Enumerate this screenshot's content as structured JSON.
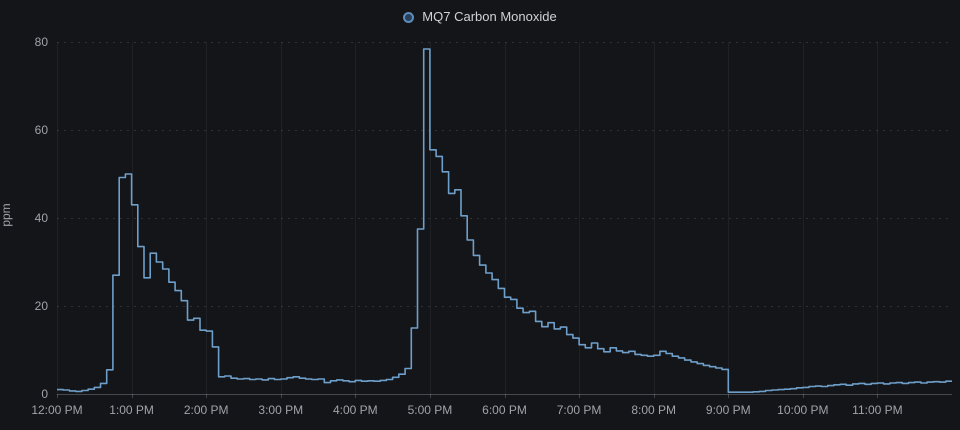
{
  "panel": {
    "background": "#141518",
    "title_color": "#d0d2d6",
    "axis_text_color": "#9fa3aa"
  },
  "legend": {
    "label": "MQ7 Carbon Monoxide",
    "marker_border_color": "#5e8cba",
    "marker_fill_color": "#27405c"
  },
  "chart_data": {
    "type": "line",
    "line_style": "step-after",
    "title": "MQ7 Carbon Monoxide",
    "xlabel": "",
    "ylabel": "ppm",
    "ylim": [
      0,
      80
    ],
    "y_ticks": [
      0,
      20,
      40,
      60,
      80
    ],
    "x_ticks": [
      "12:00 PM",
      "1:00 PM",
      "2:00 PM",
      "3:00 PM",
      "4:00 PM",
      "5:00 PM",
      "6:00 PM",
      "7:00 PM",
      "8:00 PM",
      "9:00 PM",
      "10:00 PM",
      "11:00 PM"
    ],
    "x_range_hours": 12,
    "sample_interval_minutes": 5,
    "grid": true,
    "legend_position": "top-center",
    "color": "#6e9fca",
    "series": [
      {
        "name": "MQ7 Carbon Monoxide",
        "unit": "ppm",
        "values": [
          1.0,
          0.9,
          0.7,
          0.6,
          0.8,
          1.1,
          1.5,
          2.4,
          5.5,
          27.0,
          49.2,
          50.0,
          43.0,
          33.5,
          26.4,
          32.0,
          30.0,
          28.4,
          25.4,
          23.5,
          21.2,
          16.8,
          17.2,
          14.5,
          14.3,
          10.7,
          3.9,
          4.1,
          3.6,
          3.4,
          3.5,
          3.3,
          3.4,
          3.2,
          3.5,
          3.3,
          3.4,
          3.7,
          3.9,
          3.6,
          3.4,
          3.3,
          3.4,
          2.6,
          3.0,
          3.2,
          3.0,
          2.8,
          3.1,
          2.9,
          3.0,
          2.9,
          3.1,
          3.3,
          3.8,
          4.5,
          5.8,
          15.0,
          37.5,
          78.4,
          55.5,
          54.0,
          50.5,
          45.6,
          46.4,
          40.5,
          35.0,
          31.5,
          29.3,
          27.5,
          26.0,
          24.0,
          22.0,
          21.5,
          19.5,
          18.5,
          18.8,
          16.5,
          15.3,
          16.2,
          14.8,
          15.2,
          13.5,
          12.7,
          11.2,
          10.5,
          11.6,
          10.3,
          9.6,
          10.5,
          9.8,
          9.4,
          9.7,
          9.0,
          8.8,
          8.6,
          8.8,
          9.7,
          9.2,
          8.6,
          8.2,
          7.7,
          7.3,
          6.9,
          6.5,
          6.2,
          5.9,
          5.6,
          0.4,
          0.4,
          0.4,
          0.4,
          0.5,
          0.6,
          0.8,
          0.9,
          1.0,
          1.1,
          1.2,
          1.4,
          1.5,
          1.7,
          1.8,
          1.7,
          1.9,
          2.1,
          2.2,
          2.0,
          2.3,
          2.4,
          2.2,
          2.4,
          2.5,
          2.3,
          2.5,
          2.6,
          2.4,
          2.6,
          2.7,
          2.5,
          2.7,
          2.8,
          2.7,
          2.9
        ]
      }
    ]
  }
}
